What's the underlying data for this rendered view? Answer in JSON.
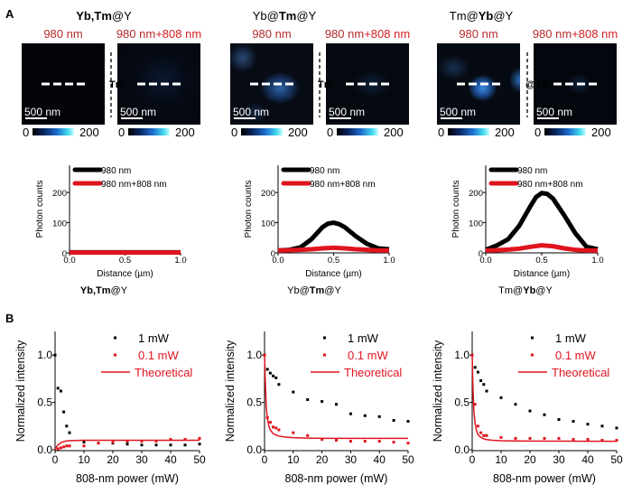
{
  "panel_labels": {
    "a": "A",
    "b": "B"
  },
  "samples": [
    {
      "title_parts": [
        {
          "text": "Yb,Tm",
          "bold": true
        },
        {
          "text": "@Y",
          "bold": false
        }
      ],
      "divider_label": "Tm"
    },
    {
      "title_parts": [
        {
          "text": "Yb@",
          "bold": false
        },
        {
          "text": "Tm",
          "bold": true
        },
        {
          "text": "@Y",
          "bold": false
        }
      ],
      "divider_label": "Tm"
    },
    {
      "title_parts": [
        {
          "text": "Tm@",
          "bold": false
        },
        {
          "text": "Yb",
          "bold": true
        },
        {
          "text": "@Y",
          "bold": false
        }
      ],
      "divider_label": "@Yb"
    }
  ],
  "image_labels": {
    "left": "980 nm",
    "right_a": "980 nm",
    "right_b": "+808 nm"
  },
  "scale_bar": "500 nm",
  "colorbar": {
    "min": "0",
    "max": "200"
  },
  "colors": {
    "black": "#000000",
    "red": "#e0141e",
    "title_red": "#b52a2a",
    "label_red": "#d42020"
  },
  "chart_data": [
    {
      "type": "line",
      "title": "",
      "xlabel": "Distance (µm)",
      "ylabel": "Photon counts",
      "xlim": [
        0,
        1
      ],
      "ylim": [
        0,
        290
      ],
      "xticks": [
        "0.0",
        "0.5",
        "1.0"
      ],
      "yticks": [
        "0",
        "100",
        "200"
      ],
      "legend": "top-left",
      "series": [
        {
          "name": "980 nm",
          "color": "#000000",
          "x": [
            0,
            0.25,
            0.5,
            0.75,
            1.0
          ],
          "y": [
            2,
            2,
            2,
            2,
            2
          ]
        },
        {
          "name": "980 nm+808 nm",
          "color": "#e0141e",
          "x": [
            0,
            0.25,
            0.5,
            0.75,
            1.0
          ],
          "y": [
            1,
            1,
            1,
            1,
            1
          ]
        }
      ]
    },
    {
      "type": "line",
      "title": "",
      "xlabel": "Distance (µm)",
      "ylabel": "Photon counts",
      "xlim": [
        0,
        1
      ],
      "ylim": [
        0,
        290
      ],
      "xticks": [
        "0.0",
        "0.5",
        "1.0"
      ],
      "yticks": [
        "0",
        "100",
        "200"
      ],
      "legend": "top-left",
      "series": [
        {
          "name": "980 nm",
          "color": "#000000",
          "x": [
            0,
            0.1,
            0.2,
            0.3,
            0.4,
            0.45,
            0.5,
            0.55,
            0.6,
            0.7,
            0.8,
            0.9,
            1.0
          ],
          "y": [
            8,
            10,
            18,
            45,
            85,
            97,
            100,
            95,
            85,
            55,
            30,
            15,
            12
          ]
        },
        {
          "name": "980 nm+808 nm",
          "color": "#e0141e",
          "x": [
            0,
            0.1,
            0.2,
            0.3,
            0.4,
            0.5,
            0.6,
            0.7,
            0.8,
            0.9,
            1.0
          ],
          "y": [
            8,
            9,
            10,
            12,
            15,
            17,
            15,
            12,
            10,
            8,
            8
          ]
        }
      ]
    },
    {
      "type": "line",
      "title": "",
      "xlabel": "Distance (µm)",
      "ylabel": "Photon counts",
      "xlim": [
        0,
        1
      ],
      "ylim": [
        0,
        290
      ],
      "xticks": [
        "0.0",
        "0.5",
        "1.0"
      ],
      "yticks": [
        "0",
        "100",
        "200"
      ],
      "legend": "top-left",
      "series": [
        {
          "name": "980 nm",
          "color": "#000000",
          "x": [
            0,
            0.1,
            0.2,
            0.3,
            0.4,
            0.45,
            0.5,
            0.55,
            0.6,
            0.7,
            0.8,
            0.9,
            1.0
          ],
          "y": [
            10,
            25,
            45,
            90,
            155,
            185,
            198,
            195,
            180,
            125,
            65,
            20,
            12
          ]
        },
        {
          "name": "980 nm+808 nm",
          "color": "#e0141e",
          "x": [
            0,
            0.1,
            0.2,
            0.3,
            0.4,
            0.5,
            0.6,
            0.7,
            0.8,
            0.9,
            1.0
          ],
          "y": [
            8,
            9,
            11,
            14,
            20,
            25,
            22,
            15,
            10,
            8,
            8
          ]
        }
      ]
    },
    {
      "type": "scatter",
      "title": "",
      "xlabel": "808-nm power (mW)",
      "ylabel": "Normalized intensity",
      "xlim": [
        0,
        50
      ],
      "ylim": [
        0,
        1.25
      ],
      "xticks": [
        "0",
        "10",
        "20",
        "30",
        "40",
        "50"
      ],
      "yticks": [
        "0.0",
        "0.5",
        "1.0"
      ],
      "legend": "top-right",
      "series": [
        {
          "name": "1 mW",
          "kind": "scatter",
          "color": "#000000",
          "x": [
            0,
            1,
            2,
            3,
            4,
            5,
            10,
            15,
            20,
            25,
            30,
            35,
            40,
            45,
            50
          ],
          "y": [
            1.0,
            0.65,
            0.62,
            0.4,
            0.25,
            0.18,
            0.08,
            0.07,
            0.07,
            0.06,
            0.05,
            0.05,
            0.05,
            0.05,
            0.06
          ]
        },
        {
          "name": "0.1 mW",
          "kind": "scatter",
          "color": "#e0141e",
          "x": [
            1,
            2,
            3,
            4,
            5,
            10,
            15,
            20,
            25,
            30,
            35,
            40,
            45,
            50
          ],
          "y": [
            0.01,
            0.02,
            0.03,
            0.04,
            0.04,
            0.04,
            0.07,
            0.08,
            0.09,
            0.09,
            0.09,
            0.11,
            0.11,
            0.12
          ]
        },
        {
          "name": "Theoretical",
          "kind": "line",
          "color": "#e0141e",
          "x": [
            0,
            0.5,
            1,
            2,
            3,
            4,
            5,
            7,
            10,
            20,
            30,
            40,
            50
          ],
          "y": [
            0,
            0.03,
            0.05,
            0.074,
            0.086,
            0.093,
            0.096,
            0.098,
            0.1,
            0.1,
            0.1,
            0.1,
            0.1
          ]
        }
      ]
    },
    {
      "type": "scatter",
      "title": "",
      "xlabel": "808-nm power (mW)",
      "ylabel": "Normalized intensity",
      "xlim": [
        0,
        50
      ],
      "ylim": [
        0,
        1.25
      ],
      "xticks": [
        "0",
        "10",
        "20",
        "30",
        "40",
        "50"
      ],
      "yticks": [
        "0.0",
        "0.5",
        "1.0"
      ],
      "legend": "top-right",
      "series": [
        {
          "name": "1 mW",
          "kind": "scatter",
          "color": "#000000",
          "x": [
            0,
            1,
            2,
            3,
            4,
            5,
            10,
            15,
            20,
            25,
            30,
            35,
            40,
            45,
            50
          ],
          "y": [
            1.0,
            0.85,
            0.81,
            0.78,
            0.76,
            0.69,
            0.61,
            0.53,
            0.51,
            0.48,
            0.38,
            0.36,
            0.35,
            0.31,
            0.3
          ]
        },
        {
          "name": "0.1 mW",
          "kind": "scatter",
          "color": "#e0141e",
          "x": [
            0,
            1,
            2,
            3,
            4,
            5,
            10,
            15,
            20,
            25,
            30,
            35,
            40,
            45,
            50
          ],
          "y": [
            1.0,
            0.34,
            0.29,
            0.24,
            0.23,
            0.21,
            0.18,
            0.15,
            0.11,
            0.1,
            0.09,
            0.09,
            0.09,
            0.08,
            0.07
          ]
        },
        {
          "name": "Theoretical",
          "kind": "line",
          "color": "#e0141e",
          "x": [
            0,
            0.3,
            0.6,
            1,
            1.5,
            2,
            3,
            4,
            5,
            7,
            10,
            15,
            20,
            30,
            40,
            50
          ],
          "y": [
            1.0,
            0.7,
            0.45,
            0.33,
            0.25,
            0.21,
            0.17,
            0.155,
            0.145,
            0.135,
            0.128,
            0.123,
            0.121,
            0.12,
            0.12,
            0.12
          ]
        }
      ]
    },
    {
      "type": "scatter",
      "title": "",
      "xlabel": "808-nm power (mW)",
      "ylabel": "Normalized intensity",
      "xlim": [
        0,
        50
      ],
      "ylim": [
        0,
        1.25
      ],
      "xticks": [
        "0",
        "10",
        "20",
        "30",
        "40",
        "50"
      ],
      "yticks": [
        "0.0",
        "0.5",
        "1.0"
      ],
      "legend": "top-right",
      "series": [
        {
          "name": "1 mW",
          "kind": "scatter",
          "color": "#000000",
          "x": [
            0,
            1,
            2,
            3,
            4,
            5,
            10,
            15,
            20,
            25,
            30,
            35,
            40,
            45,
            50
          ],
          "y": [
            1.0,
            0.87,
            0.82,
            0.73,
            0.69,
            0.62,
            0.55,
            0.48,
            0.41,
            0.37,
            0.32,
            0.3,
            0.27,
            0.25,
            0.23
          ]
        },
        {
          "name": "0.1 mW",
          "kind": "scatter",
          "color": "#e0141e",
          "x": [
            0,
            1,
            2,
            3,
            4,
            5,
            10,
            15,
            20,
            25,
            30,
            35,
            40,
            45,
            50
          ],
          "y": [
            1.0,
            0.48,
            0.25,
            0.18,
            0.15,
            0.15,
            0.13,
            0.12,
            0.12,
            0.12,
            0.12,
            0.11,
            0.11,
            0.1,
            0.1
          ]
        },
        {
          "name": "Theoretical",
          "kind": "line",
          "color": "#e0141e",
          "x": [
            0,
            0.3,
            0.6,
            1,
            1.5,
            2,
            3,
            4,
            5,
            7,
            10,
            15,
            20,
            30,
            40,
            50
          ],
          "y": [
            1.0,
            0.62,
            0.4,
            0.28,
            0.2,
            0.16,
            0.13,
            0.115,
            0.107,
            0.1,
            0.096,
            0.093,
            0.092,
            0.091,
            0.09,
            0.09
          ]
        }
      ]
    }
  ]
}
